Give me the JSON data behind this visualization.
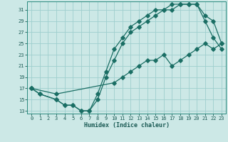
{
  "xlabel": "Humidex (Indice chaleur)",
  "bg_color": "#cce8e6",
  "grid_color": "#9ecece",
  "line_color": "#1a6e64",
  "xlim": [
    -0.5,
    23.5
  ],
  "ylim": [
    12.5,
    32.5
  ],
  "xticks": [
    0,
    1,
    2,
    3,
    4,
    5,
    6,
    7,
    8,
    9,
    10,
    11,
    12,
    13,
    14,
    15,
    16,
    17,
    18,
    19,
    20,
    21,
    22,
    23
  ],
  "yticks": [
    13,
    15,
    17,
    19,
    21,
    23,
    25,
    27,
    29,
    31
  ],
  "line1_x": [
    0,
    1,
    3,
    4,
    5,
    6,
    7,
    8,
    9,
    10,
    11,
    12,
    13,
    14,
    15,
    16,
    17,
    18,
    19,
    20,
    21,
    22,
    23
  ],
  "line1_y": [
    17,
    16,
    15,
    14,
    14,
    13,
    13,
    16,
    20,
    24,
    26,
    28,
    29,
    30,
    31,
    31,
    32,
    32,
    32,
    32,
    29,
    26,
    24
  ],
  "line2_x": [
    0,
    1,
    3,
    4,
    5,
    6,
    7,
    8,
    9,
    10,
    11,
    12,
    13,
    14,
    15,
    16,
    17,
    18,
    19,
    20,
    21,
    22,
    23
  ],
  "line2_y": [
    17,
    16,
    15,
    14,
    14,
    13,
    13,
    15,
    19,
    22,
    25,
    27,
    28,
    29,
    30,
    31,
    31,
    32,
    32,
    32,
    30,
    29,
    25
  ],
  "line3_x": [
    0,
    3,
    10,
    11,
    12,
    13,
    14,
    15,
    16,
    17,
    18,
    19,
    20,
    21,
    22,
    23
  ],
  "line3_y": [
    17,
    16,
    18,
    19,
    20,
    21,
    22,
    22,
    23,
    21,
    22,
    23,
    24,
    25,
    24,
    25
  ]
}
